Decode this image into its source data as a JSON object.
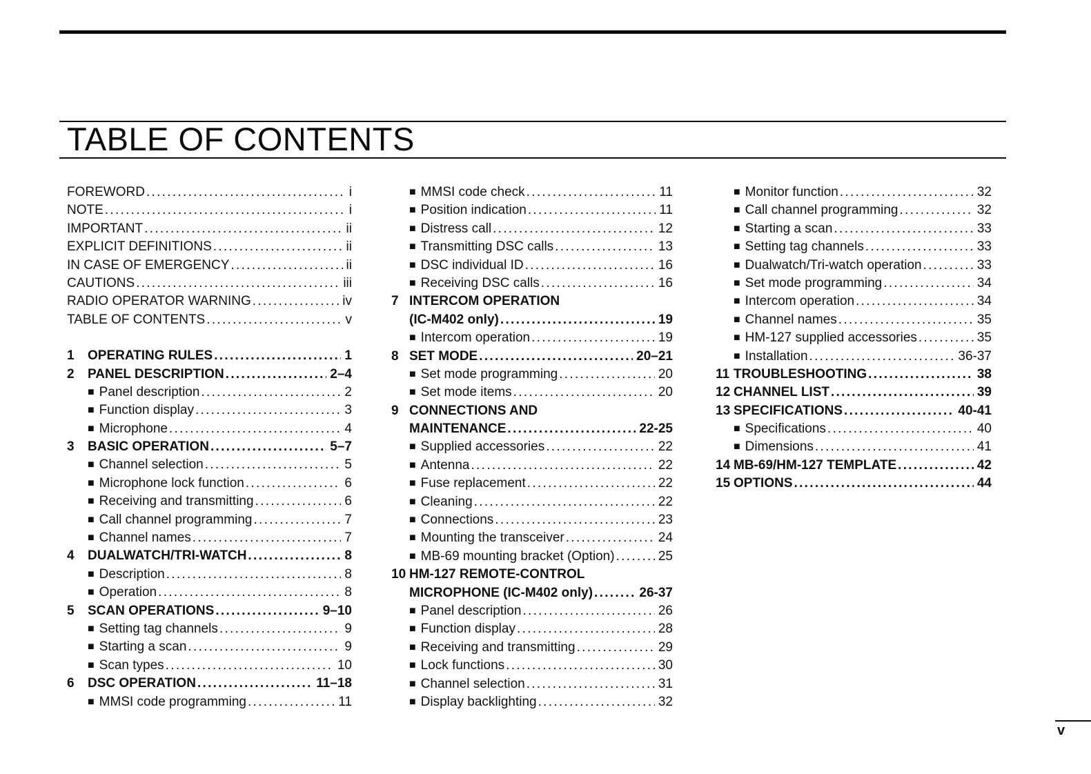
{
  "page": {
    "title": "TABLE OF CONTENTS",
    "page_number": "v"
  },
  "icons": {
    "square_bullet": "■"
  },
  "toc": {
    "columns": [
      {
        "entries": [
          {
            "type": "front",
            "label": "FOREWORD",
            "page": "i"
          },
          {
            "type": "front",
            "label": "NOTE",
            "page": "i"
          },
          {
            "type": "front",
            "label": "IMPORTANT",
            "page": "ii"
          },
          {
            "type": "front",
            "label": "EXPLICIT DEFINITIONS",
            "page": "ii"
          },
          {
            "type": "front",
            "label": "IN CASE OF EMERGENCY",
            "page": "ii"
          },
          {
            "type": "front",
            "label": "CAUTIONS",
            "page": "iii"
          },
          {
            "type": "front",
            "label": "RADIO OPERATOR WARNING",
            "page": "iv"
          },
          {
            "type": "front",
            "label": "TABLE OF CONTENTS",
            "page": "v"
          },
          {
            "type": "spacer"
          },
          {
            "type": "section",
            "num": "1",
            "label": "OPERATING RULES",
            "page": "1"
          },
          {
            "type": "section",
            "num": "2",
            "label": "PANEL DESCRIPTION",
            "page": "2–4"
          },
          {
            "type": "sub",
            "label": "Panel description",
            "page": "2"
          },
          {
            "type": "sub",
            "label": "Function display",
            "page": "3"
          },
          {
            "type": "sub",
            "label": "Microphone",
            "page": "4"
          },
          {
            "type": "section",
            "num": "3",
            "label": "BASIC OPERATION",
            "page": "5–7"
          },
          {
            "type": "sub",
            "label": "Channel selection",
            "page": "5"
          },
          {
            "type": "sub",
            "label": "Microphone lock function",
            "page": "6"
          },
          {
            "type": "sub",
            "label": "Receiving and transmitting",
            "page": "6"
          },
          {
            "type": "sub",
            "label": "Call channel programming",
            "page": "7"
          },
          {
            "type": "sub",
            "label": "Channel names",
            "page": "7"
          },
          {
            "type": "section",
            "num": "4",
            "label": "DUALWATCH/TRI-WATCH",
            "page": "8"
          },
          {
            "type": "sub",
            "label": "Description",
            "page": "8"
          },
          {
            "type": "sub",
            "label": "Operation",
            "page": "8"
          },
          {
            "type": "section",
            "num": "5",
            "label": "SCAN OPERATIONS",
            "page": "9–10"
          },
          {
            "type": "sub",
            "label": "Setting tag channels",
            "page": "9"
          },
          {
            "type": "sub",
            "label": "Starting a scan",
            "page": "9"
          },
          {
            "type": "sub",
            "label": "Scan types",
            "page": "10"
          },
          {
            "type": "section",
            "num": "6",
            "label": "DSC OPERATION",
            "page": "11–18"
          },
          {
            "type": "sub",
            "label": "MMSI code programming",
            "page": "11"
          }
        ]
      },
      {
        "entries": [
          {
            "type": "sub",
            "label": "MMSI code check",
            "page": "11"
          },
          {
            "type": "sub",
            "label": "Position indication",
            "page": "11"
          },
          {
            "type": "sub",
            "label": "Distress call",
            "page": "12"
          },
          {
            "type": "sub",
            "label": "Transmitting DSC calls",
            "page": "13"
          },
          {
            "type": "sub",
            "label": "DSC individual ID",
            "page": "16"
          },
          {
            "type": "sub",
            "label": "Receiving DSC calls",
            "page": "16"
          },
          {
            "type": "section",
            "num": "7",
            "label": "INTERCOM OPERATION",
            "page": ""
          },
          {
            "type": "section-cont",
            "label": "(IC-M402 only)",
            "page": "19"
          },
          {
            "type": "sub",
            "label": "Intercom operation",
            "page": "19"
          },
          {
            "type": "section",
            "num": "8",
            "label": "SET MODE",
            "page": "20–21"
          },
          {
            "type": "sub",
            "label": "Set mode programming",
            "page": "20"
          },
          {
            "type": "sub",
            "label": "Set mode items",
            "page": "20"
          },
          {
            "type": "section",
            "num": "9",
            "label": "CONNECTIONS AND",
            "page": ""
          },
          {
            "type": "section-cont",
            "label": "MAINTENANCE",
            "page": "22-25"
          },
          {
            "type": "sub",
            "label": "Supplied accessories",
            "page": "22"
          },
          {
            "type": "sub",
            "label": "Antenna",
            "page": "22"
          },
          {
            "type": "sub",
            "label": "Fuse replacement",
            "page": "22"
          },
          {
            "type": "sub",
            "label": "Cleaning",
            "page": "22"
          },
          {
            "type": "sub",
            "label": "Connections",
            "page": "23"
          },
          {
            "type": "sub",
            "label": "Mounting the transceiver",
            "page": "24"
          },
          {
            "type": "sub",
            "label": "MB-69 mounting bracket (Option)",
            "page": "25"
          },
          {
            "type": "section",
            "num": "10",
            "label": "HM-127 REMOTE-CONTROL",
            "page": ""
          },
          {
            "type": "section-cont",
            "label": "MICROPHONE (IC-M402 only)",
            "page": "26-37"
          },
          {
            "type": "sub",
            "label": "Panel description",
            "page": "26"
          },
          {
            "type": "sub",
            "label": "Function display",
            "page": "28"
          },
          {
            "type": "sub",
            "label": "Receiving and transmitting",
            "page": "29"
          },
          {
            "type": "sub",
            "label": "Lock functions",
            "page": "30"
          },
          {
            "type": "sub",
            "label": "Channel selection",
            "page": "31"
          },
          {
            "type": "sub",
            "label": "Display backlighting",
            "page": "32"
          }
        ]
      },
      {
        "entries": [
          {
            "type": "sub",
            "label": "Monitor function",
            "page": "32"
          },
          {
            "type": "sub",
            "label": "Call channel programming",
            "page": "32"
          },
          {
            "type": "sub",
            "label": "Starting a scan",
            "page": "33"
          },
          {
            "type": "sub",
            "label": "Setting tag channels",
            "page": "33"
          },
          {
            "type": "sub",
            "label": "Dualwatch/Tri-watch operation",
            "page": "33"
          },
          {
            "type": "sub",
            "label": "Set mode programming",
            "page": "34"
          },
          {
            "type": "sub",
            "label": "Intercom operation",
            "page": "34"
          },
          {
            "type": "sub",
            "label": "Channel names",
            "page": "35"
          },
          {
            "type": "sub",
            "label": "HM-127 supplied accessories",
            "page": "35"
          },
          {
            "type": "sub",
            "label": "Installation",
            "page": "36-37"
          },
          {
            "type": "section",
            "num": "11",
            "label": "TROUBLESHOOTING",
            "page": "38"
          },
          {
            "type": "section",
            "num": "12",
            "label": "CHANNEL LIST",
            "page": "39"
          },
          {
            "type": "section",
            "num": "13",
            "label": "SPECIFICATIONS",
            "page": "40-41"
          },
          {
            "type": "sub",
            "label": "Specifications",
            "page": "40"
          },
          {
            "type": "sub",
            "label": "Dimensions",
            "page": "41"
          },
          {
            "type": "section",
            "num": "14",
            "label": "MB-69/HM-127 TEMPLATE",
            "page": "42"
          },
          {
            "type": "section",
            "num": "15",
            "label": "OPTIONS",
            "page": "44"
          }
        ]
      }
    ]
  }
}
